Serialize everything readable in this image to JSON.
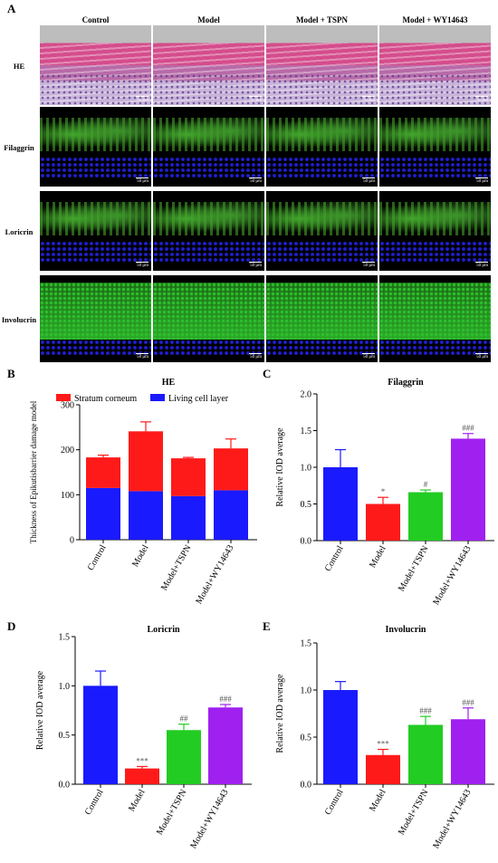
{
  "panelA": {
    "letter": "A",
    "columns": [
      "Control",
      "Model",
      "Model + TSPN",
      "Model + WY14643"
    ],
    "rows": [
      "HE",
      "Filaggrin",
      "Loricrin",
      "Involucrin"
    ],
    "scale_label": "50 μm"
  },
  "panel_letters": {
    "B": "B",
    "C": "C",
    "D": "D",
    "E": "E"
  },
  "chart_data": [
    {
      "id": "B",
      "type": "bar",
      "stacked": true,
      "title": "HE",
      "ylabel": "Thickness of Epikutisbarrier damage model",
      "categories": [
        "Control",
        "Model",
        "Model+TSPN",
        "Model+WY14643"
      ],
      "ylim": [
        0,
        300
      ],
      "yticks": [
        0,
        100,
        200,
        300
      ],
      "series": [
        {
          "name": "Living cell layer",
          "color": "#1a1aff",
          "values": [
            115,
            108,
            97,
            110
          ],
          "errors": [
            12,
            6,
            2,
            5
          ]
        },
        {
          "name": "Stratum corneum",
          "color": "#ff1a1a",
          "values": [
            68,
            133,
            84,
            93
          ],
          "errors": [
            5,
            21,
            2,
            21
          ]
        }
      ],
      "legend_position": "top"
    },
    {
      "id": "C",
      "type": "bar",
      "title": "Filaggrin",
      "ylabel": "Relative IOD average",
      "categories": [
        "Control",
        "Model",
        "Model+TSPN",
        "Model+WY14643"
      ],
      "ylim": [
        0,
        2.0
      ],
      "yticks": [
        "0.0",
        "0.5",
        "1.0",
        "1.5",
        "2.0"
      ],
      "values": [
        1.0,
        0.5,
        0.66,
        1.39
      ],
      "errors": [
        0.24,
        0.09,
        0.03,
        0.07
      ],
      "colors": [
        "#1a1aff",
        "#ff1a1a",
        "#22cc22",
        "#a020f0"
      ],
      "annotations": [
        "",
        "*",
        "#",
        "###"
      ]
    },
    {
      "id": "D",
      "type": "bar",
      "title": "Loricrin",
      "ylabel": "Relative IOD average",
      "categories": [
        "Control",
        "Model",
        "Model+TSPN",
        "Model+WY14643"
      ],
      "ylim": [
        0,
        1.5
      ],
      "yticks": [
        "0.0",
        "0.5",
        "1.0",
        "1.5"
      ],
      "values": [
        1.0,
        0.16,
        0.55,
        0.78
      ],
      "errors": [
        0.15,
        0.02,
        0.06,
        0.03
      ],
      "colors": [
        "#1a1aff",
        "#ff1a1a",
        "#22cc22",
        "#a020f0"
      ],
      "annotations": [
        "",
        "***",
        "##",
        "###"
      ]
    },
    {
      "id": "E",
      "type": "bar",
      "title": "Involucrin",
      "ylabel": "Relative IOD average",
      "categories": [
        "Control",
        "Model",
        "Model+TSPN",
        "Model+WY14643"
      ],
      "ylim": [
        0,
        1.5
      ],
      "yticks": [
        "0.0",
        "0.5",
        "1.0",
        "1.5"
      ],
      "values": [
        1.0,
        0.31,
        0.63,
        0.69
      ],
      "errors": [
        0.09,
        0.06,
        0.09,
        0.12
      ],
      "colors": [
        "#1a1aff",
        "#ff1a1a",
        "#22cc22",
        "#a020f0"
      ],
      "annotations": [
        "",
        "***",
        "###",
        "###"
      ]
    }
  ]
}
